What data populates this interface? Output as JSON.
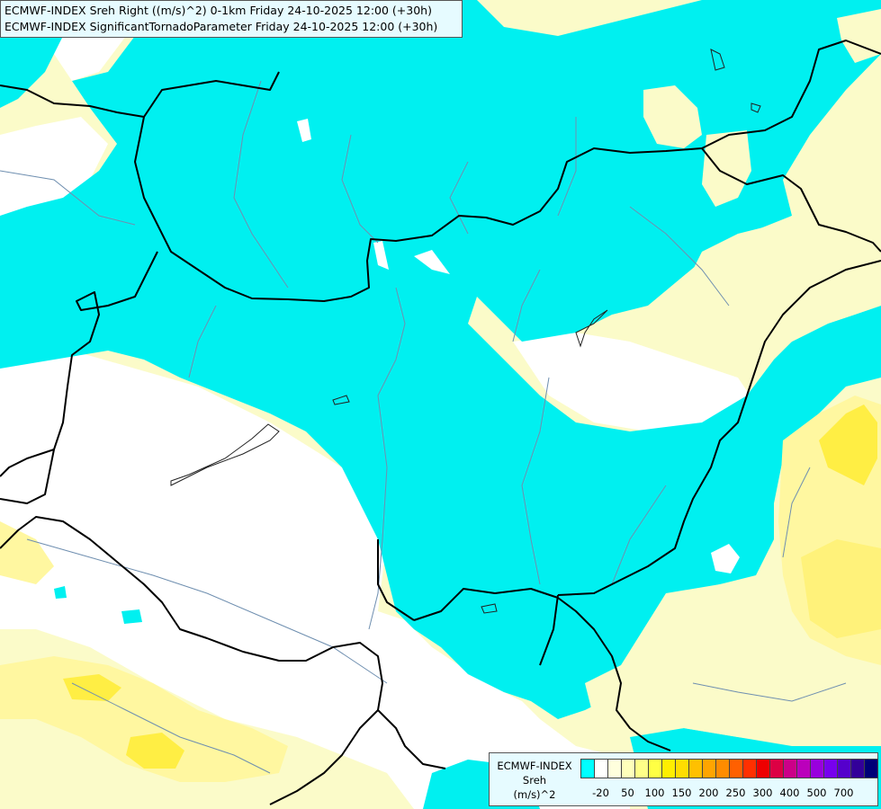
{
  "title": {
    "line1": "ECMWF-INDEX Sreh Right ((m/s)^2) 0-1km Friday 24-10-2025 12:00 (+30h)",
    "line2": "ECMWF-INDEX SignificantTornadoParameter Friday 24-10-2025 12:00 (+30h)"
  },
  "legend": {
    "title": [
      "ECMWF-INDEX",
      "Sreh",
      "(m/s)^2"
    ],
    "colors": [
      "#00ffff",
      "#ffffff",
      "#ffffdd",
      "#ffffbb",
      "#ffff88",
      "#ffff44",
      "#ffee00",
      "#ffdd00",
      "#ffc000",
      "#ffa500",
      "#ff8c00",
      "#ff6000",
      "#ff3000",
      "#ee0000",
      "#dd0044",
      "#cc0088",
      "#bb00bb",
      "#9900dd",
      "#7700ee",
      "#5500cc",
      "#330099",
      "#000077"
    ],
    "ticks": [
      "-20",
      "50",
      "100",
      "150",
      "200",
      "250",
      "300",
      "400",
      "500",
      "700"
    ]
  }
}
